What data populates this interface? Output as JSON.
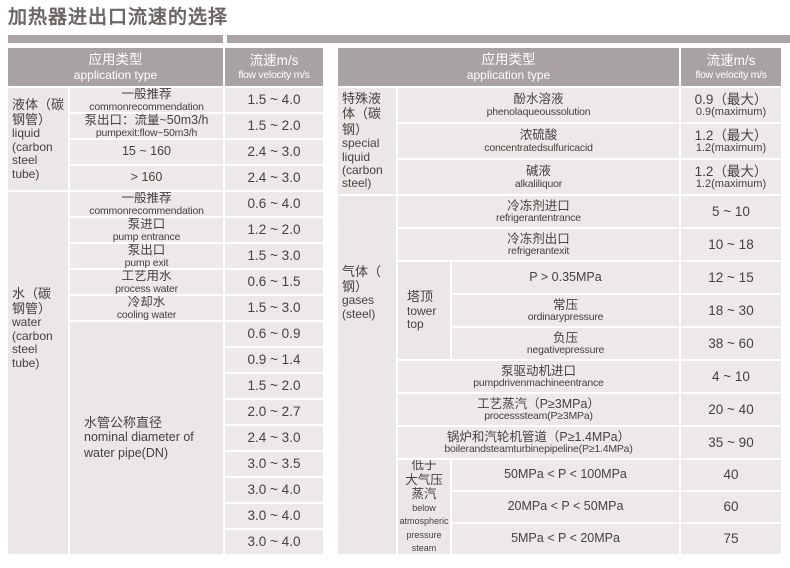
{
  "page_title": "加热器进出口流速的选择",
  "header": {
    "app_zh": "应用类型",
    "app_en": "application type",
    "vel_zh": "流速m/s",
    "vel_en": "flow velocity m/s"
  },
  "left_table": {
    "groups": [
      {
        "label_zh": "液体（碳\n钢管）",
        "label_en": "liquid (carbon steel tube)",
        "rows": [
          {
            "zh": "一般推荐",
            "en": "commonrecommendation",
            "v": "1.5 ~ 4.0"
          },
          {
            "zh": "泵出口：流量~50m3/h",
            "en": "pumpexit:flow~50m3/h",
            "v": "1.5 ~ 2.0"
          },
          {
            "zh": "15 ~ 160",
            "en": "",
            "v": "2.4 ~ 3.0"
          },
          {
            "zh": "> 160",
            "en": "",
            "v": "2.4 ~ 3.0"
          }
        ]
      },
      {
        "label_zh": "水（碳\n钢管）",
        "label_en": "water (carbon steel tube)",
        "rows": [
          {
            "zh": "一般推荐",
            "en": "commonrecommendation",
            "v": "0.6 ~ 4.0"
          },
          {
            "zh": "泵进口",
            "en": "pump entrance",
            "v": "1.2 ~ 2.0"
          },
          {
            "zh": "泵出口",
            "en": "pump exit",
            "v": "1.5 ~ 3.0"
          },
          {
            "zh": "工艺用水",
            "en": "process water",
            "v": "0.6 ~ 1.5"
          },
          {
            "zh": "冷却水",
            "en": "cooling water",
            "v": "1.5 ~ 3.0"
          }
        ],
        "dn": {
          "zh": "水管公称直径",
          "en": "nominal diameter of water pipe(DN)",
          "values": [
            "0.6 ~ 0.9",
            "0.9 ~ 1.4",
            "1.5 ~ 2.0",
            "2.0 ~ 2.7",
            "2.4 ~ 3.0",
            "3.0 ~ 3.5",
            "3.0 ~ 4.0",
            "3.0 ~ 4.0",
            "3.0 ~ 4.0"
          ]
        }
      }
    ]
  },
  "right_table": {
    "special": {
      "label_zh": "特殊液\n体（碳\n钢）",
      "label_en": "special liquid (carbon steel)",
      "rows": [
        {
          "zh": "酚水溶液",
          "en": "phenolaqueoussolution",
          "v_zh": "0.9（最大）",
          "v_en": "0.9(maximum)"
        },
        {
          "zh": "浓硫酸",
          "en": "concentratedsulfuricacid",
          "v_zh": "1.2（最大）",
          "v_en": "1.2(maximum)"
        },
        {
          "zh": "碱液",
          "en": "alkaliliquor",
          "v_zh": "1.2（最大）",
          "v_en": "1.2(maximum)"
        }
      ]
    },
    "gases": {
      "label_zh": "气体（\n钢）",
      "label_en": "gases (steel)",
      "rows_top": [
        {
          "zh": "冷冻剂进口",
          "en": "refrigerantentrance",
          "v": "5 ~ 10"
        },
        {
          "zh": "冷冻剂出口",
          "en": "refrigerantexit",
          "v": "10 ~ 18"
        }
      ],
      "tower": {
        "label_zh": "塔顶",
        "label_en": "tower top",
        "rows": [
          {
            "zh": "P > 0.35MPa",
            "en": "",
            "v": "12 ~ 15"
          },
          {
            "zh": "常压",
            "en": "ordinarypressure",
            "v": "18 ~ 30"
          },
          {
            "zh": "负压",
            "en": "negativepressure",
            "v": "38 ~ 60"
          }
        ]
      },
      "rows_mid": [
        {
          "zh": "泵驱动机进口",
          "en": "pumpdrivenmachineentrance",
          "v": "4 ~ 10"
        },
        {
          "zh": "工艺蒸汽（P≥3MPa）",
          "en": "processsteam(P≥3MPa)",
          "v": "20 ~ 40"
        },
        {
          "zh": "锅炉和汽轮机管道（P≥1.4MPa）",
          "en": "boilerandsteamturbinepipeline(P≥1.4MPa)",
          "v": "35 ~ 90"
        }
      ],
      "steam": {
        "label_zh": "低于\n大气压\n蒸汽",
        "label_en": "below\natmospheric\npressure\nsteam",
        "rows": [
          {
            "zh": "50MPa < P < 100MPa",
            "en": "",
            "v": "40"
          },
          {
            "zh": "20MPa < P < 50MPa",
            "en": "",
            "v": "60"
          },
          {
            "zh": "5MPa < P < 20MPa",
            "en": "",
            "v": "75"
          }
        ]
      }
    }
  },
  "colors": {
    "header_bg": "#a8a2a2",
    "row_bg": "#ece9e8",
    "group_bg": "#eae7e6",
    "header_text": "#ffffff",
    "body_text": "#474140",
    "title_text": "#6b6563"
  }
}
